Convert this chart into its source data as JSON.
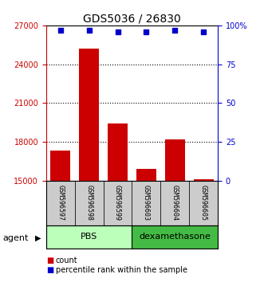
{
  "title": "GDS5036 / 26830",
  "samples": [
    "GSM596597",
    "GSM596598",
    "GSM596599",
    "GSM596603",
    "GSM596604",
    "GSM596605"
  ],
  "counts": [
    17300,
    25200,
    19400,
    15900,
    18200,
    15100
  ],
  "percentiles": [
    97,
    97,
    96,
    96,
    97,
    96
  ],
  "ylim_left": [
    15000,
    27000
  ],
  "yticks_left": [
    15000,
    18000,
    21000,
    24000,
    27000
  ],
  "ylim_right": [
    0,
    100
  ],
  "yticks_right": [
    0,
    25,
    50,
    75,
    100
  ],
  "ytick_labels_right": [
    "0",
    "25",
    "50",
    "75",
    "100%"
  ],
  "bar_color": "#cc0000",
  "dot_color": "#0000cc",
  "agent_groups": [
    {
      "label": "PBS",
      "indices": [
        0,
        1,
        2
      ],
      "color": "#bbffbb"
    },
    {
      "label": "dexamethasone",
      "indices": [
        3,
        4,
        5
      ],
      "color": "#44bb44"
    }
  ],
  "agent_label": "agent",
  "legend_count_label": "count",
  "legend_percentile_label": "percentile rank within the sample",
  "bar_width": 0.7,
  "tick_area_color": "#cccccc",
  "title_fontsize": 10,
  "axis_fontsize": 7,
  "label_fontsize": 7
}
